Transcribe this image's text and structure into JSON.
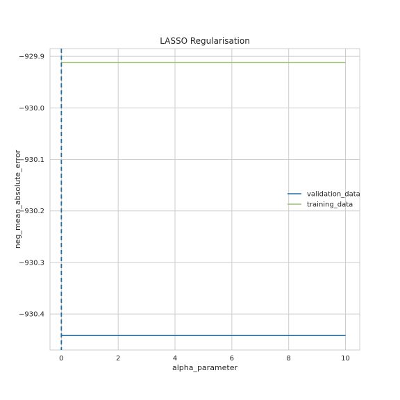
{
  "chart_data": {
    "type": "line",
    "title": "LASSO Regularisation",
    "xlabel": "alpha_parameter",
    "ylabel": "neg_mean_absolute_error",
    "xlim": [
      -0.4,
      10.5
    ],
    "ylim": [
      -930.47,
      -929.885
    ],
    "x_ticks": [
      0,
      2,
      4,
      6,
      8,
      10
    ],
    "y_ticks": [
      -929.9,
      -930.0,
      -930.1,
      -930.2,
      -930.3,
      -930.4
    ],
    "x_tick_labels": [
      "0",
      "2",
      "4",
      "6",
      "8",
      "10"
    ],
    "y_tick_labels": [
      "−929.9",
      "−930.0",
      "−930.1",
      "−930.2",
      "−930.3",
      "−930.4"
    ],
    "grid": true,
    "legend_position": "center-right",
    "series": [
      {
        "name": "validation_data",
        "color": "#1f6fa5",
        "x": [
          0,
          10
        ],
        "y": [
          -930.442,
          -930.442
        ]
      },
      {
        "name": "training_data",
        "color": "#9cbf6f",
        "x": [
          0,
          10
        ],
        "y": [
          -929.912,
          -929.912
        ]
      }
    ],
    "vline": {
      "x": 0,
      "color": "#1f6fa5",
      "style": "dashed"
    }
  }
}
